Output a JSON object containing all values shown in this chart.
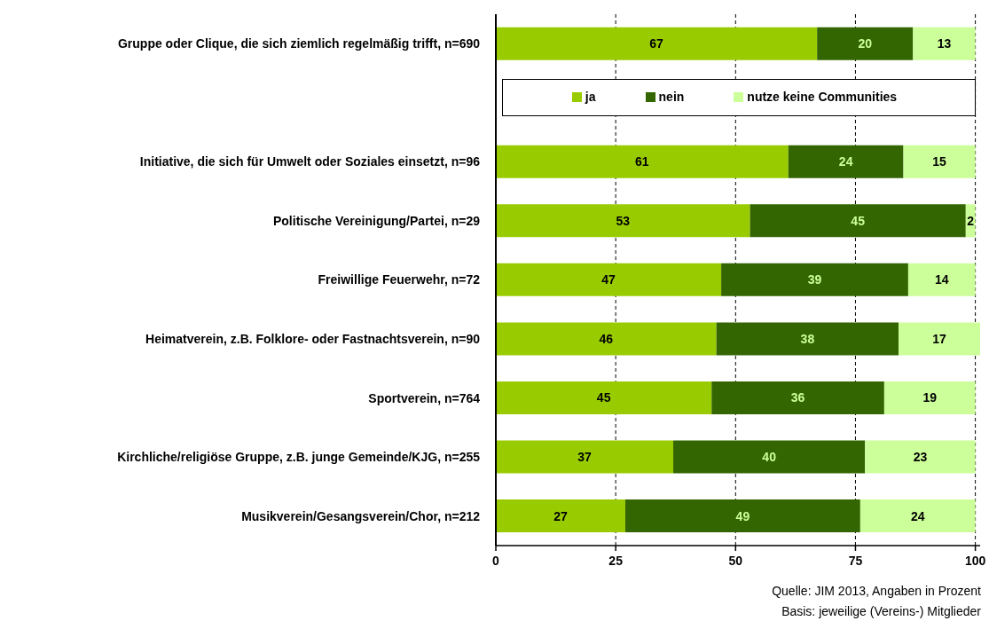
{
  "chart_data": {
    "type": "bar",
    "orientation": "horizontal",
    "stacked": true,
    "categories": [
      "Gruppe oder Clique, die sich ziemlich regelmäßig trifft, n=690",
      null,
      "Initiative, die sich für Umwelt oder Soziales einsetzt, n=96",
      "Politische Vereinigung/Partei, n=29",
      "Freiwillige Feuerwehr, n=72",
      "Heimatverein, z.B. Folklore- oder Fastnachtsverein, n=90",
      "Sportverein, n=764",
      "Kirchliche/religiöse Gruppe, z.B. junge Gemeinde/KJG, n=255",
      "Musikverein/Gesangsverein/Chor, n=212"
    ],
    "series": [
      {
        "name": "ja",
        "color": "#99cc00",
        "values": [
          67,
          null,
          61,
          53,
          47,
          46,
          45,
          37,
          27
        ]
      },
      {
        "name": "nein",
        "color": "#336600",
        "values": [
          20,
          null,
          24,
          45,
          39,
          38,
          36,
          40,
          49
        ]
      },
      {
        "name": "nutze keine Communities",
        "color": "#ccff99",
        "values": [
          13,
          null,
          15,
          2,
          14,
          17,
          19,
          23,
          24
        ]
      }
    ],
    "xlim": [
      0,
      101
    ],
    "xticks": [
      0,
      25,
      50,
      75,
      100
    ],
    "grid": "x",
    "legend": "top",
    "data_labels": true,
    "annotations": [
      "Quelle: JIM 2013, Angaben in Prozent",
      "Basis: jeweilige (Vereins-) Mitglieder"
    ]
  }
}
